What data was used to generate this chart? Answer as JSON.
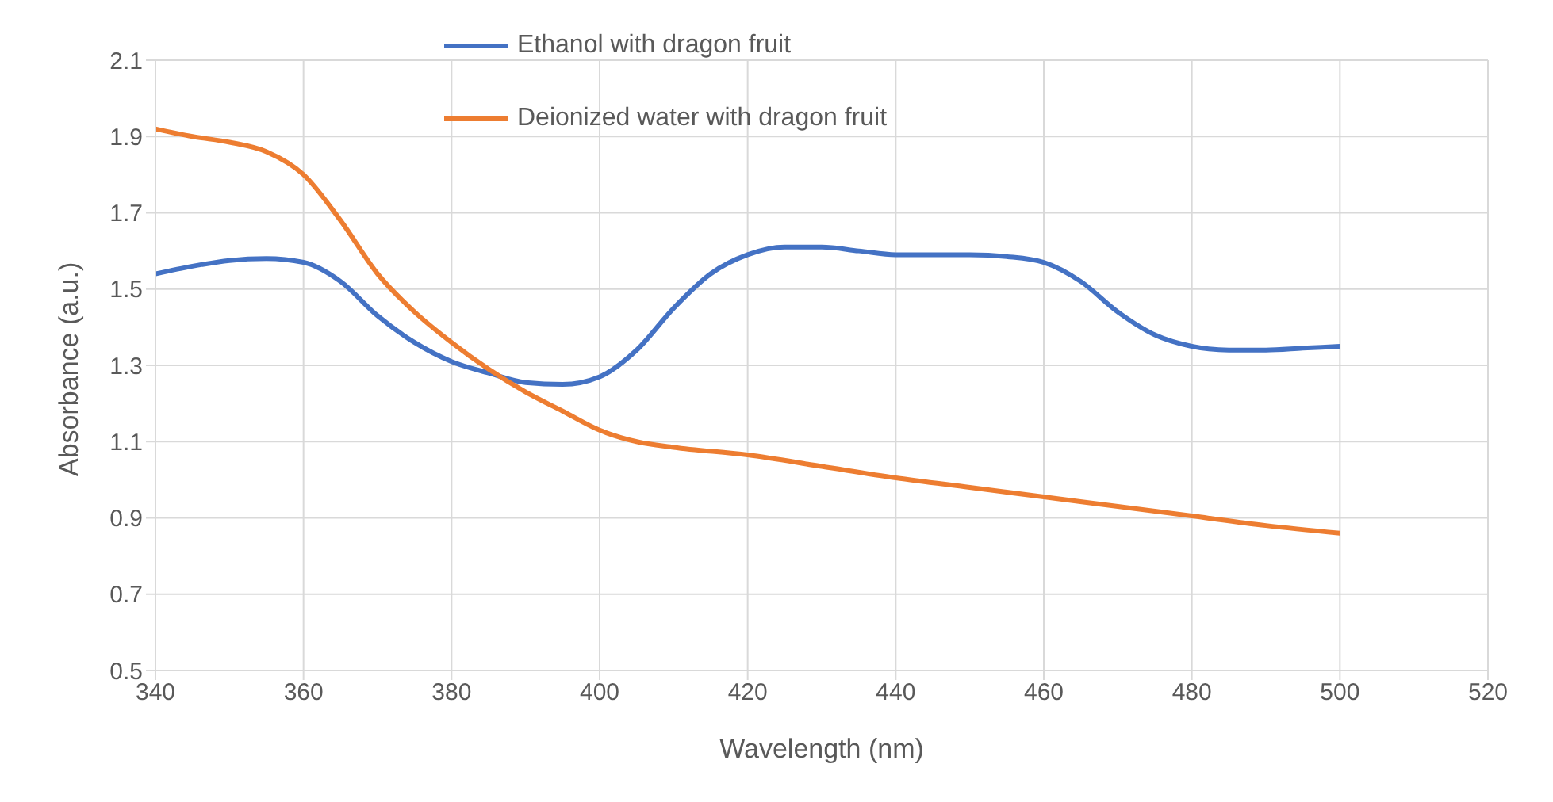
{
  "chart_data": {
    "type": "line",
    "xlabel": "Wavelength (nm)",
    "ylabel": "Absorbance (a.u.)",
    "xlim": [
      340,
      520
    ],
    "xticks": [
      340,
      360,
      380,
      400,
      420,
      440,
      460,
      480,
      500,
      520
    ],
    "ylim": [
      0.5,
      2.1
    ],
    "yticks": [
      0.5,
      0.7,
      0.9,
      1.1,
      1.3,
      1.5,
      1.7,
      1.9,
      2.1
    ],
    "grid": true,
    "legend": "top",
    "marker": "none",
    "line_style": "solid",
    "series": [
      {
        "name": "Ethanol with dragon fruit",
        "color": "#4472c4",
        "x": [
          340,
          345,
          350,
          355,
          360,
          365,
          370,
          375,
          380,
          385,
          390,
          395,
          400,
          405,
          410,
          415,
          420,
          425,
          430,
          435,
          440,
          445,
          450,
          455,
          460,
          465,
          470,
          475,
          480,
          485,
          490,
          495,
          500
        ],
        "values": [
          1.54,
          1.56,
          1.575,
          1.58,
          1.57,
          1.52,
          1.43,
          1.36,
          1.31,
          1.28,
          1.255,
          1.25,
          1.27,
          1.34,
          1.45,
          1.54,
          1.59,
          1.61,
          1.61,
          1.6,
          1.59,
          1.59,
          1.59,
          1.585,
          1.57,
          1.52,
          1.44,
          1.38,
          1.35,
          1.34,
          1.34,
          1.345,
          1.35
        ]
      },
      {
        "name": "Deionized water with dragon fruit",
        "color": "#ed7d31",
        "x": [
          340,
          345,
          350,
          355,
          360,
          365,
          370,
          375,
          380,
          385,
          390,
          395,
          400,
          405,
          410,
          420,
          430,
          440,
          450,
          460,
          470,
          480,
          490,
          500
        ],
        "values": [
          1.92,
          1.9,
          1.885,
          1.86,
          1.8,
          1.68,
          1.54,
          1.44,
          1.36,
          1.29,
          1.23,
          1.18,
          1.13,
          1.1,
          1.085,
          1.065,
          1.035,
          1.005,
          0.98,
          0.955,
          0.93,
          0.905,
          0.88,
          0.86
        ]
      }
    ]
  }
}
